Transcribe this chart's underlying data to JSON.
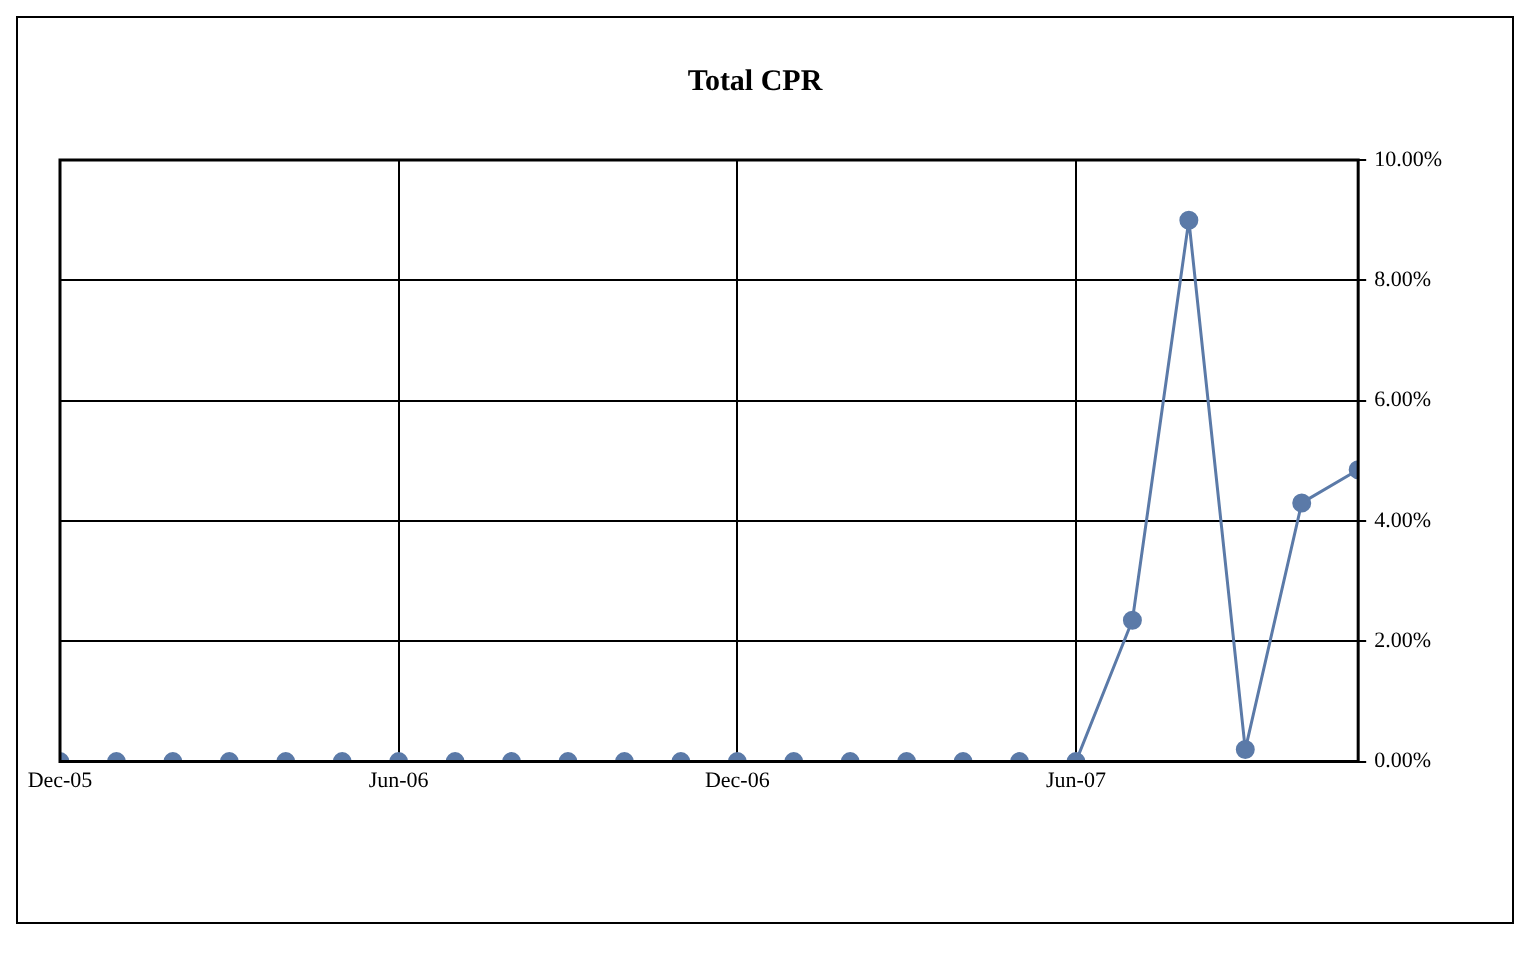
{
  "chart_data": {
    "type": "line",
    "title": "Total CPR",
    "x": [
      "2005-12",
      "2006-01",
      "2006-02",
      "2006-03",
      "2006-04",
      "2006-05",
      "2006-06",
      "2006-07",
      "2006-08",
      "2006-09",
      "2006-10",
      "2006-11",
      "2006-12",
      "2007-01",
      "2007-02",
      "2007-03",
      "2007-04",
      "2007-05",
      "2007-06",
      "2007-07",
      "2007-08",
      "2007-09",
      "2007-10",
      "2007-11"
    ],
    "series": [
      {
        "color": "#5b7aa8",
        "values": [
          0,
          0,
          0,
          0,
          0,
          0,
          0,
          0,
          0,
          0,
          0,
          0,
          0,
          0,
          0,
          0,
          0,
          0,
          0,
          2.35,
          9.0,
          0.2,
          4.3,
          4.85
        ]
      }
    ],
    "xlim": [
      "2005-12",
      "2007-11"
    ],
    "xticks": [
      {
        "value": "2005-12",
        "label": "Dec-05"
      },
      {
        "value": "2006-06",
        "label": "Jun-06"
      },
      {
        "value": "2006-12",
        "label": "Dec-06"
      },
      {
        "value": "2007-06",
        "label": "Jun-07"
      }
    ],
    "ylim": [
      0,
      10
    ],
    "yticks": [
      {
        "value": 0,
        "label": "0.00%"
      },
      {
        "value": 2,
        "label": "2.00%"
      },
      {
        "value": 4,
        "label": "4.00%"
      },
      {
        "value": 6,
        "label": "6.00%"
      },
      {
        "value": 8,
        "label": "8.00%"
      },
      {
        "value": 10,
        "label": "10.00%"
      }
    ],
    "grid": true,
    "legend": false,
    "marker": "circle",
    "line_style": "solid"
  }
}
